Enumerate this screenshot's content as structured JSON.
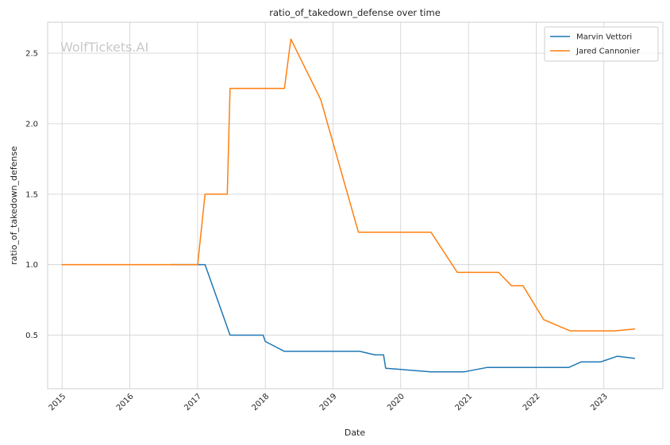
{
  "chart_data": {
    "type": "line",
    "title": "ratio_of_takedown_defense over time",
    "xlabel": "Date",
    "ylabel": "ratio_of_takedown_defense",
    "watermark": "WolfTickets.AI",
    "x_ticks": [
      "2015",
      "2016",
      "2017",
      "2018",
      "2019",
      "2020",
      "2021",
      "2022",
      "2023"
    ],
    "y_ticks": [
      "0.5",
      "1.0",
      "1.5",
      "2.0",
      "2.5"
    ],
    "xlim": [
      "2014-10-15",
      "2023-11-15"
    ],
    "ylim": [
      0.12,
      2.72
    ],
    "grid": true,
    "legend": "top-right",
    "colors": {
      "Marvin Vettori": "#1f77b4",
      "Jared Cannonier": "#ff7f0e"
    },
    "series": [
      {
        "name": "Marvin Vettori",
        "color": "#1f77b4",
        "points": [
          [
            "2016-08-06",
            1.0
          ],
          [
            "2017-02-10",
            1.0
          ],
          [
            "2017-06-25",
            0.5
          ],
          [
            "2017-12-20",
            0.5
          ],
          [
            "2018-01-01",
            0.455
          ],
          [
            "2018-04-14",
            0.385
          ],
          [
            "2019-05-25",
            0.385
          ],
          [
            "2019-08-15",
            0.36
          ],
          [
            "2019-10-01",
            0.36
          ],
          [
            "2019-10-12",
            0.265
          ],
          [
            "2020-06-10",
            0.24
          ],
          [
            "2020-12-10",
            0.24
          ],
          [
            "2021-04-10",
            0.27
          ],
          [
            "2022-06-25",
            0.27
          ],
          [
            "2022-09-01",
            0.31
          ],
          [
            "2022-12-15",
            0.31
          ],
          [
            "2023-03-15",
            0.35
          ],
          [
            "2023-06-15",
            0.335
          ]
        ]
      },
      {
        "name": "Jared Cannonier",
        "color": "#ff7f0e",
        "points": [
          [
            "2015-01-01",
            1.0
          ],
          [
            "2017-01-01",
            1.0
          ],
          [
            "2017-02-10",
            1.5
          ],
          [
            "2017-06-10",
            1.5
          ],
          [
            "2017-06-25",
            2.25
          ],
          [
            "2018-04-14",
            2.25
          ],
          [
            "2018-05-19",
            2.6
          ],
          [
            "2018-10-27",
            2.17
          ],
          [
            "2019-05-18",
            1.23
          ],
          [
            "2020-06-13",
            1.23
          ],
          [
            "2020-11-01",
            0.945
          ],
          [
            "2021-06-12",
            0.945
          ],
          [
            "2021-08-21",
            0.85
          ],
          [
            "2021-10-22",
            0.85
          ],
          [
            "2022-02-10",
            0.61
          ],
          [
            "2022-07-02",
            0.53
          ],
          [
            "2023-03-01",
            0.53
          ],
          [
            "2023-06-15",
            0.543
          ]
        ]
      }
    ]
  }
}
